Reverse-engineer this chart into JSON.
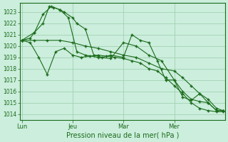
{
  "background_color": "#cceedd",
  "grid_color": "#99ccaa",
  "line_color": "#1a6b1a",
  "marker_color": "#1a6b1a",
  "xlabel": "Pression niveau de la mer( hPa )",
  "ylim": [
    1013.5,
    1023.8
  ],
  "yticks": [
    1014,
    1015,
    1016,
    1017,
    1018,
    1019,
    1020,
    1021,
    1022,
    1023
  ],
  "xtick_labels": [
    "Lun",
    "Jeu",
    "Mar",
    "Mer"
  ],
  "xtick_positions": [
    0,
    24,
    48,
    72
  ],
  "xlim": [
    -1,
    96
  ],
  "series": [
    {
      "x": [
        0,
        4,
        6,
        10,
        13,
        15,
        18,
        20,
        24,
        26,
        30,
        34,
        38,
        42,
        48,
        52,
        56,
        60,
        64,
        68,
        72,
        76,
        80,
        84,
        88,
        92,
        95
      ],
      "y": [
        1020.5,
        1020.7,
        1021.2,
        1022.0,
        1023.5,
        1023.4,
        1023.2,
        1023.0,
        1022.5,
        1022.0,
        1021.5,
        1019.2,
        1019.0,
        1019.2,
        1019.0,
        1021.0,
        1020.5,
        1020.3,
        1018.7,
        1017.0,
        1017.0,
        1015.5,
        1015.2,
        1015.8,
        1015.0,
        1014.3,
        1014.3
      ]
    },
    {
      "x": [
        0,
        6,
        10,
        14,
        18,
        22,
        26,
        30,
        36,
        42,
        48,
        54,
        60,
        66,
        72,
        76,
        80,
        84,
        88,
        92,
        95
      ],
      "y": [
        1020.5,
        1021.2,
        1022.8,
        1023.5,
        1023.2,
        1022.5,
        1019.5,
        1019.2,
        1019.0,
        1018.9,
        1020.3,
        1020.0,
        1019.2,
        1018.7,
        1017.0,
        1016.0,
        1015.3,
        1015.1,
        1015.0,
        1014.3,
        1014.3
      ]
    },
    {
      "x": [
        0,
        6,
        12,
        18,
        24,
        30,
        36,
        42,
        48,
        54,
        60,
        66,
        72,
        76,
        80,
        84,
        88,
        92,
        95
      ],
      "y": [
        1020.5,
        1020.5,
        1020.5,
        1020.5,
        1020.3,
        1020.0,
        1019.8,
        1019.5,
        1019.2,
        1019.0,
        1018.5,
        1018.0,
        1017.8,
        1017.2,
        1016.5,
        1015.8,
        1015.3,
        1014.5,
        1014.3
      ]
    },
    {
      "x": [
        0,
        4,
        8,
        12,
        16,
        20,
        24,
        28,
        32,
        36,
        40,
        44,
        48,
        52,
        56,
        60,
        64,
        68,
        72,
        76,
        80,
        84,
        88,
        92,
        95
      ],
      "y": [
        1020.5,
        1020.3,
        1019.0,
        1017.5,
        1019.5,
        1019.8,
        1019.2,
        1019.0,
        1019.1,
        1019.2,
        1019.1,
        1019.0,
        1018.9,
        1018.7,
        1018.5,
        1018.0,
        1017.8,
        1017.2,
        1016.5,
        1015.8,
        1015.0,
        1014.5,
        1014.3,
        1014.2,
        1014.2
      ]
    }
  ]
}
